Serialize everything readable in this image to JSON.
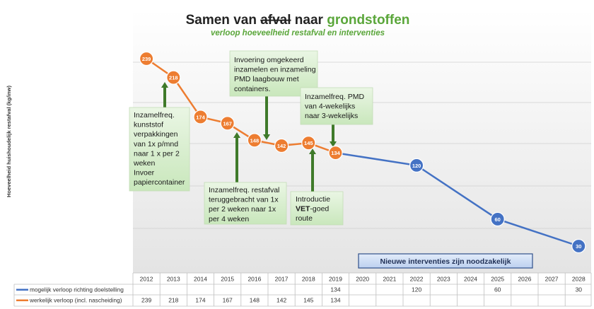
{
  "chart_data": {
    "type": "line",
    "title": {
      "part1": "Samen van ",
      "part2_strikethrough": "afval",
      "part3": " naar ",
      "part4_green": "grondstoffen"
    },
    "subtitle": "verloop hoeveelheid restafval en interventies",
    "ylabel": "Hoeveelheid huishoudelijk restafval (kg/inw)",
    "x": [
      "2012",
      "2013",
      "2014",
      "2015",
      "2016",
      "2017",
      "2018",
      "2019",
      "2020",
      "2021",
      "2022",
      "2023",
      "2024",
      "2025",
      "2026",
      "2027",
      "2028"
    ],
    "series": [
      {
        "name": "mogelijk verloop richting doelstelling",
        "color": "#4472c4",
        "values": [
          null,
          null,
          null,
          null,
          null,
          null,
          null,
          134,
          null,
          null,
          120,
          null,
          null,
          60,
          null,
          null,
          30
        ]
      },
      {
        "name": "werkelijk verloop (incl. nascheiding)",
        "color": "#ed7d31",
        "values": [
          239,
          218,
          174,
          167,
          148,
          142,
          145,
          134,
          null,
          null,
          null,
          null,
          null,
          null,
          null,
          null,
          null
        ]
      }
    ],
    "annotations": [
      {
        "lines": [
          "Inzamelfreq.",
          "kunststof",
          "verpakkingen",
          "van 1x p/mnd",
          "naar 1 x per 2",
          "weken",
          "Invoer",
          "papiercontainer"
        ]
      },
      {
        "lines": [
          "Invoering omgekeerd",
          "inzamelen en inzameling",
          "PMD laagbouw met",
          "containers."
        ]
      },
      {
        "lines": [
          "Inzamelfreq. PMD",
          "van 4-wekelijks",
          "naar 3-wekelijks"
        ]
      },
      {
        "lines": [
          "Inzamelfreq. restafval",
          "teruggebracht van 1x",
          "per 2 weken naar 1x",
          "per 4 weken"
        ]
      },
      {
        "lines_rich": [
          [
            {
              "t": "Introductie",
              "b": false
            }
          ],
          [
            {
              "t": "VET",
              "b": true
            },
            {
              "t": "-goed",
              "b": false
            }
          ],
          [
            {
              "t": "route",
              "b": false
            }
          ]
        ]
      }
    ],
    "callout": "Nieuwe interventies zijn noodzakelijk",
    "grid": true
  }
}
